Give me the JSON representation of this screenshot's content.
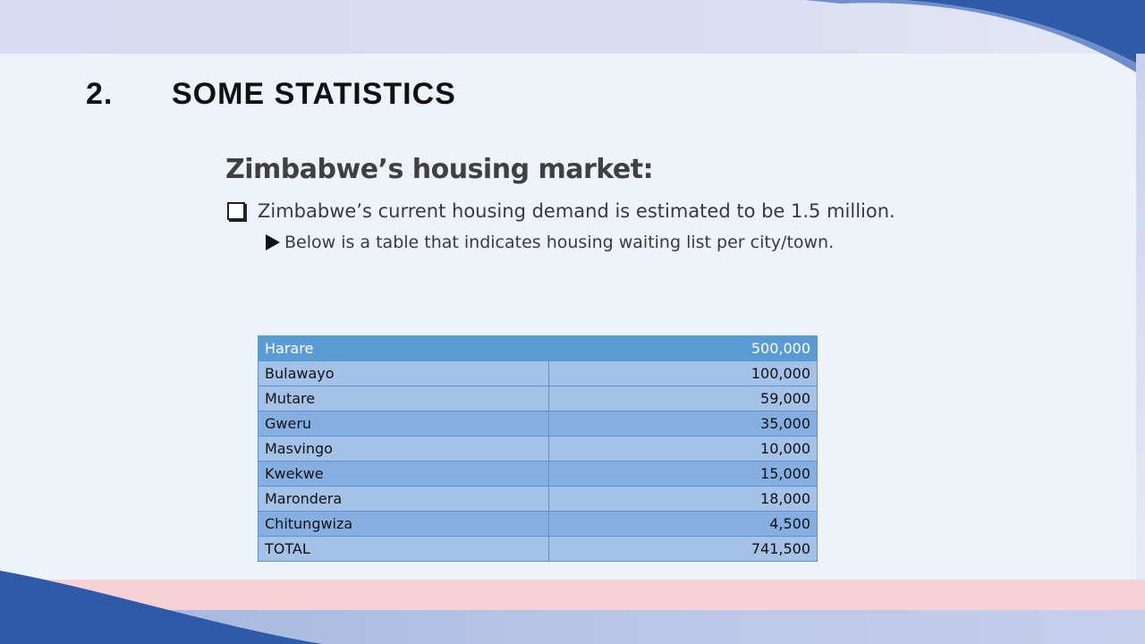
{
  "slide": {
    "section_number": "2.",
    "section_title": "SOME STATISTICS",
    "subtitle": "Zimbabwe’s housing market:",
    "bullet_text": "Zimbabwe’s current housing demand  is estimated to be 1.5 million.",
    "sub_bullet_text": "Below is a table that indicates housing waiting list per city/town."
  },
  "table": {
    "rows": [
      {
        "city": "Harare",
        "value": "500,000"
      },
      {
        "city": "Bulawayo",
        "value": "100,000"
      },
      {
        "city": "Mutare",
        "value": "59,000"
      },
      {
        "city": "Gweru",
        "value": "35,000"
      },
      {
        "city": "Masvingo",
        "value": "10,000"
      },
      {
        "city": "Kwekwe",
        "value": "15,000"
      },
      {
        "city": "Marondera",
        "value": "18,000"
      },
      {
        "city": "Chitungwiza",
        "value": "4,500"
      },
      {
        "city": "TOTAL",
        "value": "741,500"
      }
    ]
  },
  "colors": {
    "header_fill": "#5b9bd5",
    "row_light": "#a4c1e8",
    "row_dark": "#86afe1",
    "swoosh": "#2f5aa8"
  },
  "icons": {
    "bullet": "checkbox-icon",
    "sub_bullet": "triangle-icon"
  }
}
